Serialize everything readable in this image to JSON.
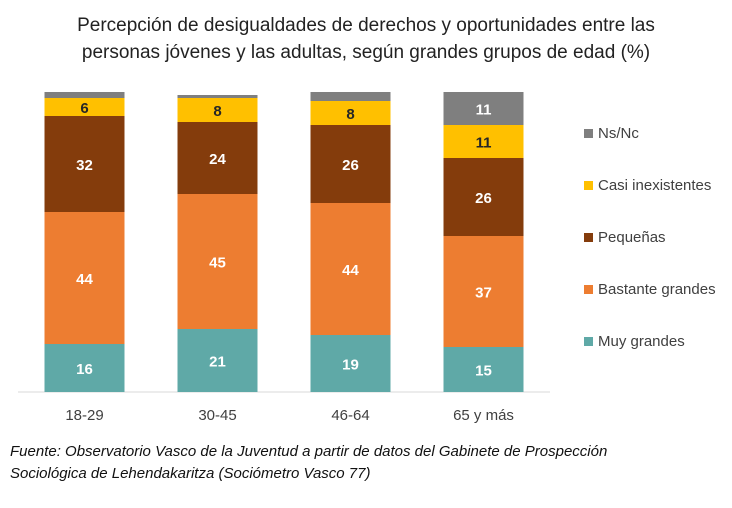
{
  "chart_data": {
    "type": "bar",
    "stacked": true,
    "title_line1": "Percepción de desigualdades de derechos y oportunidades entre las",
    "title_line2": "personas jóvenes y las adultas, según grandes grupos de edad (%)",
    "categories": [
      "18-29",
      "30-45",
      "46-64",
      "65 y más"
    ],
    "ylim": [
      0,
      100
    ],
    "grid": false,
    "legend_position": "right",
    "series": [
      {
        "name": "Muy grandes",
        "color": "#5fa9a7",
        "values": [
          16,
          21,
          19,
          15
        ]
      },
      {
        "name": "Bastante grandes",
        "color": "#ed7d31",
        "values": [
          44,
          45,
          44,
          37
        ]
      },
      {
        "name": "Pequeñas",
        "color": "#843c0c",
        "values": [
          32,
          24,
          26,
          26
        ]
      },
      {
        "name": "Casi inexistentes",
        "color": "#ffc000",
        "values": [
          6,
          8,
          8,
          11
        ]
      },
      {
        "name": "Ns/Nc",
        "color": "#7f7f7f",
        "values": [
          2,
          1,
          3,
          11
        ]
      }
    ],
    "data_labels": [
      [
        "16",
        "21",
        "19",
        "15"
      ],
      [
        "44",
        "45",
        "44",
        "37"
      ],
      [
        "32",
        "24",
        "26",
        "26"
      ],
      [
        "6",
        "8",
        "8",
        "11"
      ],
      [
        "",
        "",
        "",
        "11"
      ]
    ]
  },
  "source": {
    "line1": "Fuente: Observatorio Vasco de la Juventud a partir de datos del Gabinete de Prospección",
    "line2": "Sociológica de Lehendakaritza (Sociómetro Vasco 77)"
  }
}
